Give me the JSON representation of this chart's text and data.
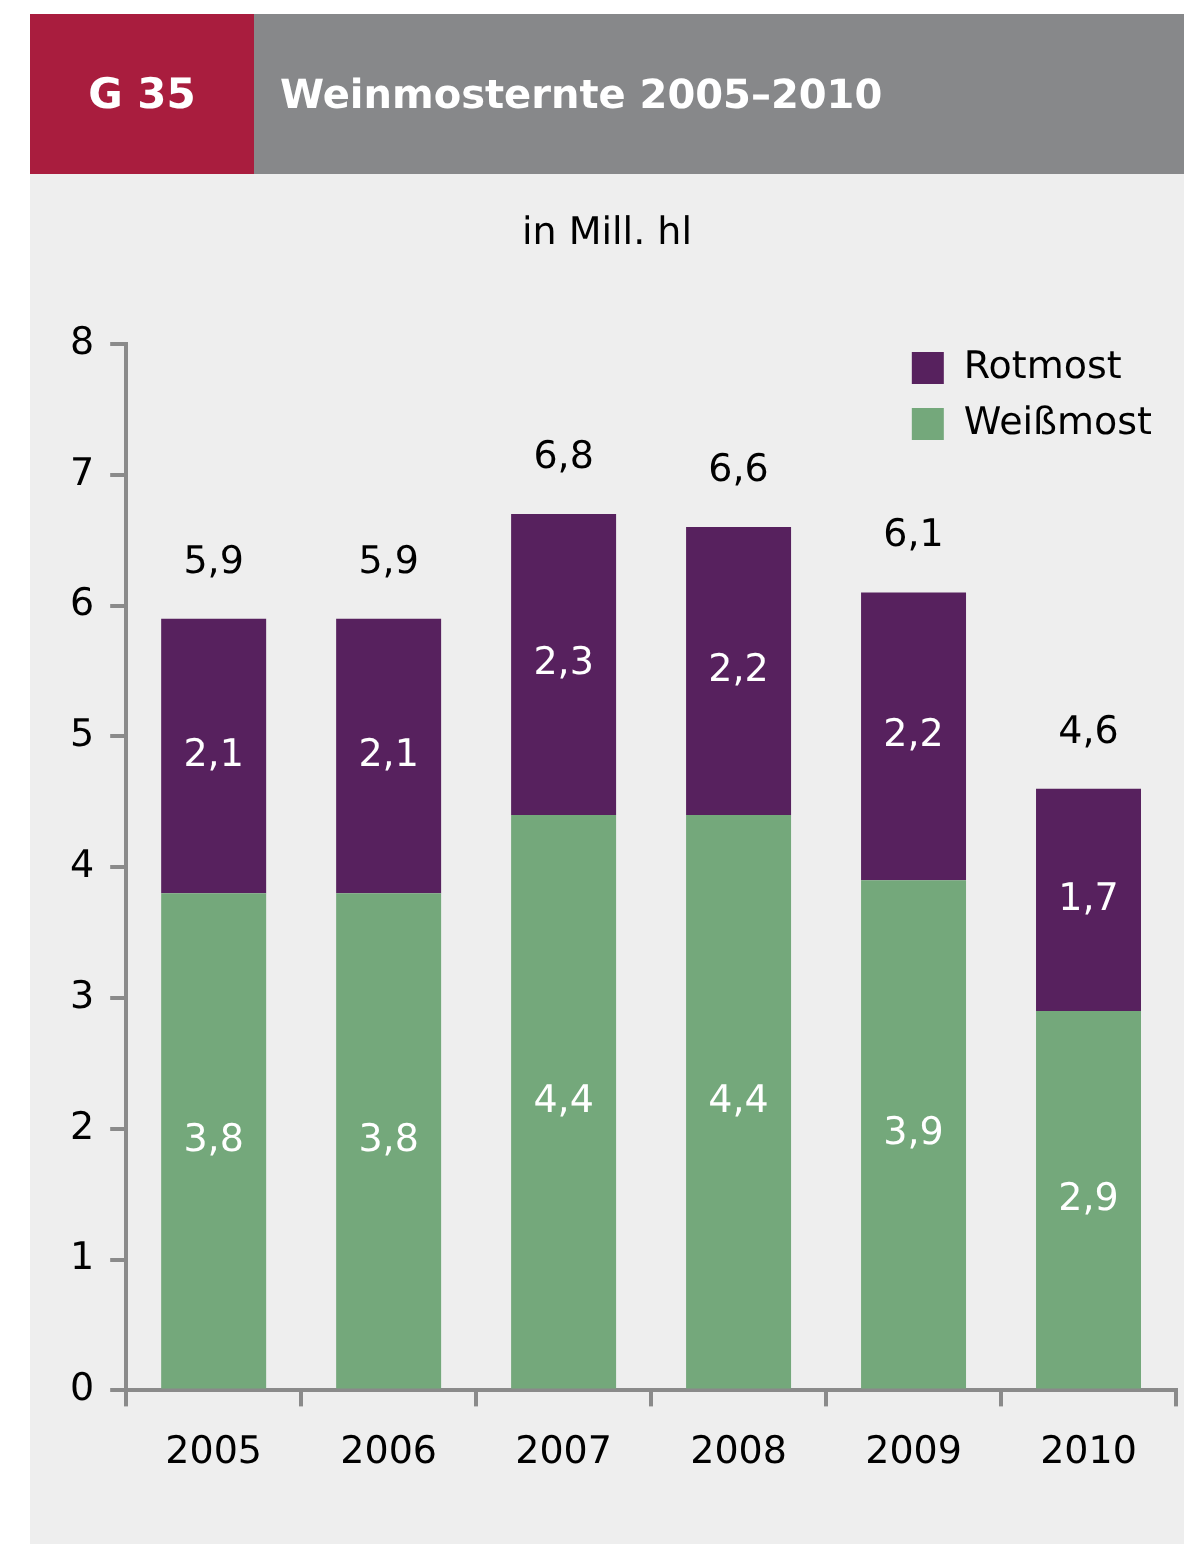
{
  "chart_data": {
    "type": "bar",
    "title": "Weinmosternte 2005–2010",
    "subtitle": "in Mill. hl",
    "annotations": [
      "G 35"
    ],
    "categories": [
      "2005",
      "2006",
      "2007",
      "2008",
      "2009",
      "2010"
    ],
    "stacked": true,
    "series": [
      {
        "name": "Weißmost",
        "color": "#74a87b",
        "values": [
          3.8,
          3.8,
          4.4,
          4.4,
          3.9,
          2.9
        ],
        "value_labels": [
          "3,8",
          "3,8",
          "4,4",
          "4,4",
          "3,9",
          "2,9"
        ]
      },
      {
        "name": "Rotmost",
        "color": "#57215e",
        "values": [
          2.1,
          2.1,
          2.3,
          2.2,
          2.2,
          1.7
        ],
        "value_labels": [
          "2,1",
          "2,1",
          "2,3",
          "2,2",
          "2,2",
          "1,7"
        ]
      }
    ],
    "totals": [
      "5,9",
      "5,9",
      "6,8",
      "6,6",
      "6,1",
      "4,6"
    ],
    "ylim": [
      0,
      8
    ],
    "yticks": [
      0,
      1,
      2,
      3,
      4,
      5,
      6,
      7,
      8
    ],
    "grid": false,
    "legend": "top right"
  }
}
